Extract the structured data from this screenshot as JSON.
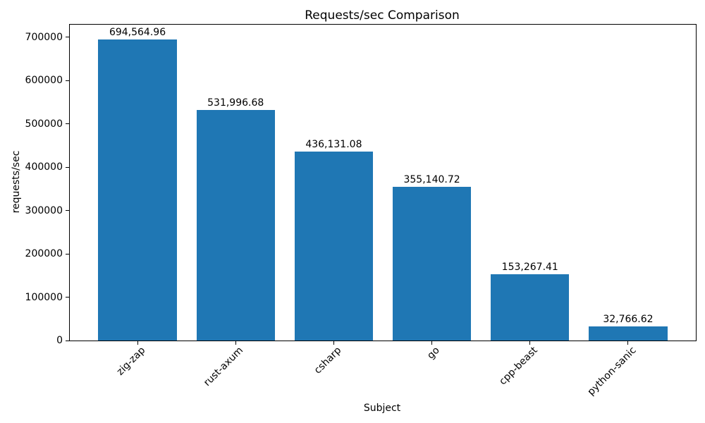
{
  "figure": {
    "background": "#ffffff",
    "text_color": "#000000",
    "spine_color": "#000000"
  },
  "chart_data": {
    "type": "bar",
    "title": "Requests/sec Comparison",
    "xlabel": "Subject",
    "ylabel": "requests/sec",
    "categories": [
      "zig-zap",
      "rust-axum",
      "csharp",
      "go",
      "cpp-beast",
      "python-sanic"
    ],
    "values": [
      694564.96,
      531996.68,
      436131.08,
      355140.72,
      153267.41,
      32766.62
    ],
    "bar_value_labels": [
      "694,564.96",
      "531,996.68",
      "436,131.08",
      "355,140.72",
      "153,267.41",
      "32,766.62"
    ],
    "yticks": [
      0,
      100000,
      200000,
      300000,
      400000,
      500000,
      600000,
      700000
    ],
    "ytick_labels": [
      "0",
      "100000",
      "200000",
      "300000",
      "400000",
      "500000",
      "600000",
      "700000"
    ],
    "ylim": [
      0,
      729293.21
    ],
    "bar_color": "#1f77b4",
    "bar_width_fraction": 0.8,
    "grid": false,
    "legend_position": "none",
    "xtick_rotation_deg": 45
  }
}
